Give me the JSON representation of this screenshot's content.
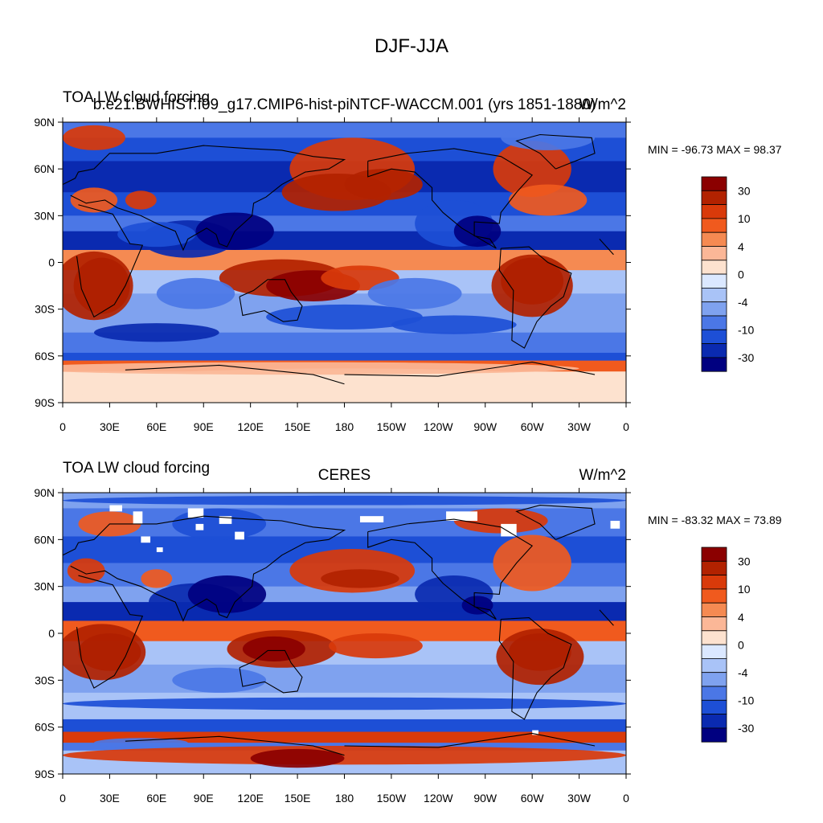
{
  "figure": {
    "title": "DJF-JJA"
  },
  "chart_data": [
    {
      "type": "heatmap",
      "panel": "top",
      "title_left": "TOA LW cloud forcing",
      "title_center": "b.e21.BWHIST.f09_g17.CMIP6-hist-piNTCF-WACCM.001 (yrs 1851-1880)",
      "title_right": "W/m^2",
      "min_max_text": "MIN = -96.73 MAX =  98.37",
      "x_ticks": [
        "0",
        "30E",
        "60E",
        "90E",
        "120E",
        "150E",
        "180",
        "150W",
        "120W",
        "90W",
        "60W",
        "30W",
        "0"
      ],
      "y_ticks": [
        "90N",
        "60N",
        "30N",
        "0",
        "30S",
        "60S",
        "90S"
      ],
      "xlim": [
        0,
        360
      ],
      "ylim": [
        -90,
        90
      ]
    },
    {
      "type": "heatmap",
      "panel": "bottom",
      "title_left": "TOA LW cloud forcing",
      "title_center": "CERES",
      "title_right": "W/m^2",
      "min_max_text": "MIN = -83.32 MAX =  73.89",
      "x_ticks": [
        "0",
        "30E",
        "60E",
        "90E",
        "120E",
        "150E",
        "180",
        "150W",
        "120W",
        "90W",
        "60W",
        "30W",
        "0"
      ],
      "y_ticks": [
        "90N",
        "60N",
        "30N",
        "0",
        "30S",
        "60S",
        "90S"
      ],
      "xlim": [
        0,
        360
      ],
      "ylim": [
        -90,
        90
      ]
    }
  ],
  "colorbar": {
    "labels": [
      "30",
      "10",
      "4",
      "0",
      "-4",
      "-10",
      "-30"
    ],
    "colors": [
      "#8b0000",
      "#b22200",
      "#d93a0a",
      "#f05a1e",
      "#f58a52",
      "#fbb797",
      "#fde2cf",
      "#dbe8ff",
      "#a9c3f7",
      "#7fa2ef",
      "#4b77e6",
      "#1d4fd6",
      "#0a2ab0",
      "#000080"
    ]
  }
}
